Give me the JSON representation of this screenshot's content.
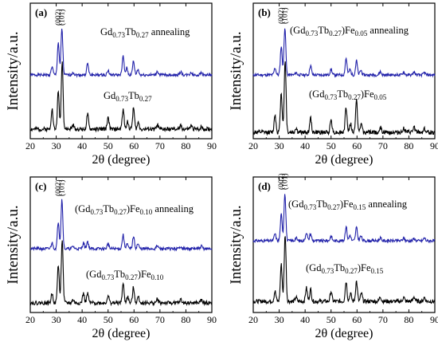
{
  "colors": {
    "annealed": "#2222aa",
    "asprepared": "#000000",
    "frame": "#000000"
  },
  "axis": {
    "x_ticks": [
      "20",
      "30",
      "40",
      "50",
      "60",
      "70",
      "80",
      "90"
    ],
    "xlabel": "2θ (degree)",
    "ylabel": "Intensity/a.u."
  },
  "chart_data": [
    {
      "type": "line",
      "panel": "(a)",
      "xlabel": "2θ (degree)",
      "ylabel": "Intensity/a.u.",
      "xlim": [
        20,
        90
      ],
      "ticks_x": [
        20,
        30,
        40,
        50,
        60,
        70,
        80,
        90
      ],
      "peak_labels": [
        "(002)",
        "(101)"
      ],
      "series": [
        {
          "label": "Gd",
          "sub1": "0.73",
          "mid": "Tb",
          "sub2": "0.27",
          "suffix": " annealing",
          "fe": "",
          "color": "#2222aa",
          "peaks": [
            [
              28.4,
              0.18
            ],
            [
              30.8,
              0.7
            ],
            [
              32.2,
              1.0
            ],
            [
              36.5,
              0.06
            ],
            [
              42.1,
              0.25
            ],
            [
              50.0,
              0.1
            ],
            [
              55.8,
              0.4
            ],
            [
              57.2,
              0.15
            ],
            [
              59.8,
              0.3
            ],
            [
              61.5,
              0.12
            ],
            [
              69.0,
              0.08
            ],
            [
              78.0,
              0.07
            ],
            [
              82.0,
              0.06
            ],
            [
              86.0,
              0.05
            ]
          ]
        },
        {
          "label": "Gd",
          "sub1": "0.73",
          "mid": "Tb",
          "sub2": "0.27",
          "suffix": "",
          "fe": "",
          "color": "#000000",
          "peaks": [
            [
              28.4,
              0.3
            ],
            [
              30.8,
              0.55
            ],
            [
              32.3,
              1.0
            ],
            [
              36.5,
              0.06
            ],
            [
              42.1,
              0.22
            ],
            [
              50.0,
              0.18
            ],
            [
              55.8,
              0.3
            ],
            [
              57.5,
              0.12
            ],
            [
              59.8,
              0.32
            ],
            [
              61.7,
              0.1
            ],
            [
              69.0,
              0.06
            ],
            [
              78.0,
              0.05
            ],
            [
              82.0,
              0.05
            ],
            [
              86.0,
              0.04
            ]
          ]
        }
      ]
    },
    {
      "type": "line",
      "panel": "(b)",
      "xlabel": "2θ (degree)",
      "ylabel": "Intensity/a.u.",
      "xlim": [
        20,
        90
      ],
      "ticks_x": [
        20,
        30,
        40,
        50,
        60,
        70,
        80,
        90
      ],
      "peak_labels": [
        "(002)",
        "(101)"
      ],
      "series": [
        {
          "label": "(Gd",
          "sub1": "0.73",
          "mid": "Tb",
          "sub2": "0.27",
          "suffix": "Fe",
          "fe": "0.05",
          "tail": " annealing",
          "color": "#2222aa",
          "peaks": [
            [
              28.4,
              0.15
            ],
            [
              30.8,
              0.6
            ],
            [
              32.2,
              1.0
            ],
            [
              36.5,
              0.05
            ],
            [
              42.1,
              0.2
            ],
            [
              50.0,
              0.12
            ],
            [
              55.8,
              0.35
            ],
            [
              57.3,
              0.12
            ],
            [
              59.8,
              0.3
            ],
            [
              61.5,
              0.1
            ],
            [
              69.0,
              0.07
            ],
            [
              78.0,
              0.06
            ],
            [
              82.0,
              0.06
            ],
            [
              86.0,
              0.05
            ]
          ]
        },
        {
          "label": "(Gd",
          "sub1": "0.73",
          "mid": "Tb",
          "sub2": "0.27",
          "suffix": "Fe",
          "fe": "0.05",
          "tail": "",
          "color": "#000000",
          "peaks": [
            [
              28.4,
              0.25
            ],
            [
              30.8,
              0.55
            ],
            [
              32.3,
              1.0
            ],
            [
              36.5,
              0.06
            ],
            [
              42.1,
              0.2
            ],
            [
              50.0,
              0.18
            ],
            [
              55.8,
              0.35
            ],
            [
              57.5,
              0.12
            ],
            [
              59.8,
              0.45
            ],
            [
              61.7,
              0.12
            ],
            [
              69.0,
              0.07
            ],
            [
              78.0,
              0.06
            ],
            [
              82.0,
              0.07
            ],
            [
              86.0,
              0.05
            ]
          ]
        }
      ]
    },
    {
      "type": "line",
      "panel": "(c)",
      "xlabel": "2θ (degree)",
      "ylabel": "Intensity/a.u.",
      "xlim": [
        20,
        90
      ],
      "ticks_x": [
        20,
        30,
        40,
        50,
        60,
        70,
        80,
        90
      ],
      "peak_labels": [
        "(002)",
        "(101)"
      ],
      "series": [
        {
          "label": "(Gd",
          "sub1": "0.73",
          "mid": "Tb",
          "sub2": "0.27",
          "suffix": "Fe",
          "fe": "0.10",
          "tail": " annealing",
          "color": "#2222aa",
          "peaks": [
            [
              28.4,
              0.12
            ],
            [
              30.8,
              0.55
            ],
            [
              32.2,
              1.0
            ],
            [
              36.5,
              0.05
            ],
            [
              40.5,
              0.12
            ],
            [
              42.1,
              0.15
            ],
            [
              50.0,
              0.1
            ],
            [
              55.8,
              0.28
            ],
            [
              57.3,
              0.1
            ],
            [
              59.8,
              0.25
            ],
            [
              61.5,
              0.1
            ],
            [
              69.0,
              0.06
            ],
            [
              78.0,
              0.05
            ],
            [
              86.0,
              0.05
            ]
          ]
        },
        {
          "label": "(Gd",
          "sub1": "0.73",
          "mid": "Tb",
          "sub2": "0.27",
          "suffix": "Fe",
          "fe": "0.10",
          "tail": "",
          "color": "#000000",
          "peaks": [
            [
              28.4,
              0.15
            ],
            [
              30.8,
              0.6
            ],
            [
              32.3,
              1.0
            ],
            [
              36.5,
              0.05
            ],
            [
              40.5,
              0.15
            ],
            [
              42.1,
              0.15
            ],
            [
              50.0,
              0.12
            ],
            [
              55.8,
              0.3
            ],
            [
              57.5,
              0.1
            ],
            [
              59.8,
              0.25
            ],
            [
              61.7,
              0.1
            ],
            [
              69.0,
              0.06
            ],
            [
              78.0,
              0.05
            ],
            [
              86.0,
              0.05
            ]
          ]
        }
      ]
    },
    {
      "type": "line",
      "panel": "(d)",
      "xlabel": "2θ (degree)",
      "ylabel": "Intensity/a.u.",
      "xlim": [
        20,
        90
      ],
      "ticks_x": [
        20,
        30,
        40,
        50,
        60,
        70,
        80,
        90
      ],
      "peak_labels": [
        "(002)",
        "(101)"
      ],
      "series": [
        {
          "label": "(Gd",
          "sub1": "0.73",
          "mid": "Tb",
          "sub2": "0.27",
          "suffix": "Fe",
          "fe": "0.15",
          "tail": " annealing",
          "color": "#2222aa",
          "peaks": [
            [
              28.4,
              0.15
            ],
            [
              30.8,
              0.55
            ],
            [
              32.2,
              1.0
            ],
            [
              36.5,
              0.06
            ],
            [
              40.5,
              0.18
            ],
            [
              42.1,
              0.15
            ],
            [
              50.0,
              0.1
            ],
            [
              55.8,
              0.3
            ],
            [
              57.3,
              0.12
            ],
            [
              59.8,
              0.28
            ],
            [
              61.5,
              0.1
            ],
            [
              69.0,
              0.06
            ],
            [
              78.0,
              0.06
            ],
            [
              82.0,
              0.05
            ],
            [
              86.0,
              0.06
            ]
          ]
        },
        {
          "label": "(Gd",
          "sub1": "0.73",
          "mid": "Tb",
          "sub2": "0.27",
          "suffix": "Fe",
          "fe": "0.15",
          "tail": "",
          "color": "#000000",
          "peaks": [
            [
              28.4,
              0.15
            ],
            [
              30.8,
              0.55
            ],
            [
              32.3,
              1.0
            ],
            [
              36.5,
              0.06
            ],
            [
              40.5,
              0.2
            ],
            [
              42.1,
              0.18
            ],
            [
              50.0,
              0.15
            ],
            [
              55.8,
              0.3
            ],
            [
              57.5,
              0.12
            ],
            [
              59.8,
              0.3
            ],
            [
              61.7,
              0.12
            ],
            [
              69.0,
              0.07
            ],
            [
              78.0,
              0.06
            ],
            [
              82.0,
              0.07
            ],
            [
              86.0,
              0.06
            ]
          ]
        }
      ]
    }
  ]
}
